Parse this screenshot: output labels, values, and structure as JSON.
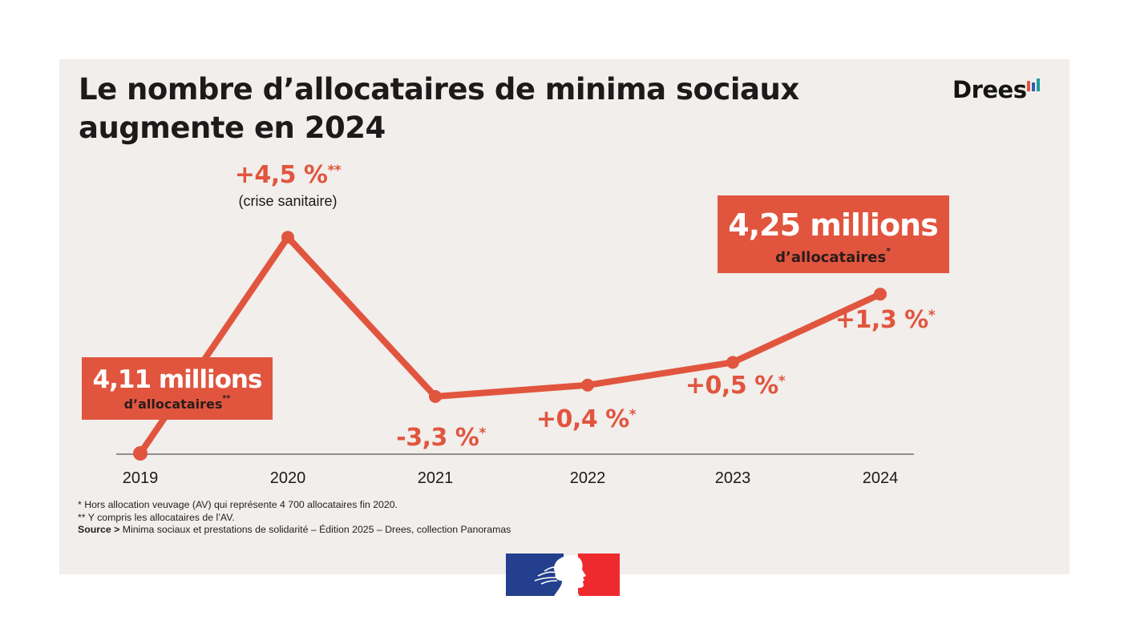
{
  "header": {
    "title_line1": "Le nombre d’allocataires de minima sociaux",
    "title_line2": "augmente en 2024",
    "brand": "Drees",
    "brand_bar_colors": [
      "#e1553f",
      "#2e5db1",
      "#1e9b9b"
    ]
  },
  "colors": {
    "accent": "#e1553f",
    "background": "#f1eeeb",
    "text": "#1c1a1a",
    "axis": "#6e6e6e",
    "flag_blue": "#233f8e",
    "flag_red": "#ef2a2f"
  },
  "chart_data": {
    "type": "line",
    "title": "Le nombre d’allocataires de minima sociaux augmente en 2024",
    "xlabel": "",
    "ylabel": "",
    "grid": false,
    "x": [
      "2019",
      "2020",
      "2021",
      "2022",
      "2023",
      "2024"
    ],
    "series": [
      {
        "name": "Allocataires de minima sociaux (millions)",
        "values": [
          4.11,
          4.3,
          4.16,
          4.17,
          4.19,
          4.25
        ]
      }
    ],
    "ylim": [
      4.11,
      4.31
    ],
    "annotations": [
      {
        "x": "2019",
        "big": "4,11 millions",
        "small": "d’allocataires",
        "mark": "**",
        "style": "box"
      },
      {
        "x": "2020",
        "text": "+4,5 %",
        "mark": "**",
        "note": "(crise sanitaire)",
        "style": "label-above"
      },
      {
        "x": "2021",
        "text": "-3,3 %",
        "mark": "*",
        "style": "label-below"
      },
      {
        "x": "2022",
        "text": "+0,4 %",
        "mark": "*",
        "style": "label-below"
      },
      {
        "x": "2023",
        "text": "+0,5 %",
        "mark": "*",
        "style": "label-below"
      },
      {
        "x": "2024",
        "text": "+1,3 %",
        "mark": "*",
        "style": "label-below"
      },
      {
        "x": "2024",
        "big": "4,25 millions",
        "small": "d’allocataires",
        "mark": "*",
        "style": "box"
      }
    ]
  },
  "footnotes": {
    "note1": "* Hors allocation veuvage (AV) qui représente 4 700 allocataires fin 2020.",
    "note2": "** Y compris les allocataires de l’AV.",
    "source_label": "Source >",
    "source_text": " Minima sociaux et prestations de solidarité – Édition 2025 – Drees, collection Panoramas"
  },
  "logo": {
    "name": "Marianne République française"
  }
}
